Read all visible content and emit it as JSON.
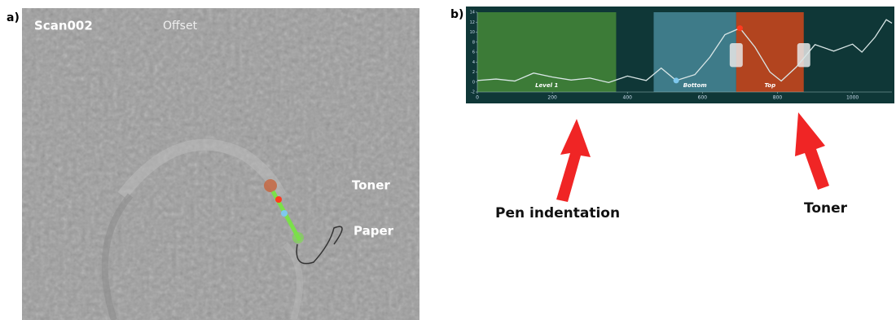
{
  "panel_a": {
    "label": "a)",
    "scan_name": "Scan002",
    "mode": "Offset",
    "toner_label": "Toner",
    "paper_label": "Paper"
  },
  "panel_b": {
    "label": "b)"
  },
  "annotations": {
    "pen": "Pen indentation",
    "toner": "Toner"
  },
  "chart_data": {
    "type": "line",
    "color": "#d9e6e6",
    "x": [
      0,
      50,
      100,
      150,
      200,
      250,
      300,
      350,
      400,
      450,
      490,
      530,
      580,
      620,
      660,
      700,
      740,
      780,
      810,
      850,
      900,
      950,
      1000,
      1025,
      1060,
      1090,
      1105
    ],
    "values": [
      0.3,
      0.6,
      0.2,
      1.8,
      1.0,
      0.4,
      0.8,
      -0.1,
      1.2,
      0.3,
      2.8,
      0.3,
      1.5,
      5,
      9.5,
      10.8,
      7,
      2,
      0.2,
      3,
      7.5,
      6.2,
      7.6,
      6,
      9,
      12.5,
      11.8
    ],
    "regions": [
      {
        "label": "Level 1",
        "start": 0,
        "end": 370,
        "color": "#3c7b37"
      },
      {
        "label": "Bottom",
        "start": 470,
        "end": 690,
        "color": "#3e7b89"
      },
      {
        "label": "Top",
        "start": 690,
        "end": 870,
        "color": "#b2441f"
      }
    ],
    "points": [
      {
        "x": 530,
        "value": 0.3,
        "color": "#7fc8ee"
      },
      {
        "x": 700,
        "value": 10.8,
        "color": "#ff3b1f"
      }
    ],
    "xlim": [
      0,
      1105
    ],
    "xticks": [
      0,
      200,
      400,
      600,
      800,
      1000
    ],
    "ylim": [
      -2,
      14
    ],
    "yticks": [
      -2,
      0,
      2,
      4,
      6,
      8,
      10,
      12,
      14
    ]
  }
}
